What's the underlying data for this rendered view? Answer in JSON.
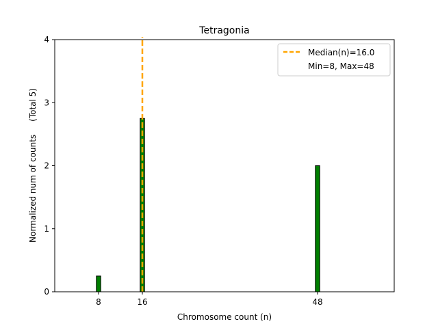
{
  "chart_data": {
    "type": "bar",
    "title": "Tetragonia",
    "xlabel": "Chromosome count (n)",
    "ylabel": "Normalized num of counts     (Total 5)",
    "xlim": [
      0,
      62
    ],
    "ylim": [
      0,
      4
    ],
    "xticks": [
      8,
      16,
      48
    ],
    "yticks": [
      0,
      1,
      2,
      3,
      4
    ],
    "bar_width": 0.8,
    "grid": false,
    "series": [
      {
        "name": "counts",
        "x": [
          8,
          16,
          48
        ],
        "values": [
          0.25,
          2.75,
          2.0
        ]
      }
    ],
    "median_line": {
      "x": 16.0,
      "label": "Median(n)=16.0"
    },
    "legend": {
      "placement": "top-right",
      "entries": [
        "Median(n)=16.0",
        "Min=8, Max=48"
      ]
    },
    "colors": {
      "bar_fill": "#007f00",
      "bar_edge": "#000000",
      "median": "#ffa500",
      "axes": "#000000",
      "background": "#ffffff"
    }
  }
}
